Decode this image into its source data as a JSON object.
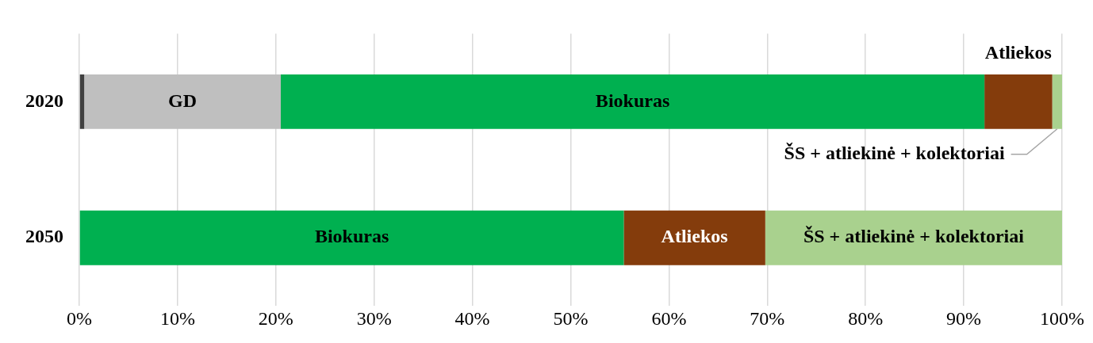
{
  "chart_data": {
    "type": "bar",
    "orientation": "horizontal",
    "stacked": true,
    "categories": [
      "2020",
      "2050"
    ],
    "series": [
      {
        "color": "#404040",
        "values": [
          0.5,
          0
        ]
      },
      {
        "name": "GD",
        "color": "#bfbfbf",
        "values": [
          20.0,
          0
        ]
      },
      {
        "name": "Biokuras",
        "color": "#00b050",
        "values": [
          71.6,
          55.4
        ]
      },
      {
        "name": "Atliekos",
        "color": "#843c0c",
        "values": [
          6.9,
          14.4
        ]
      },
      {
        "name": "ŠS + atliekinė + kolektoriai",
        "color": "#a9d18e",
        "values": [
          1.0,
          30.2
        ]
      }
    ],
    "xlim": [
      0,
      100
    ],
    "xticks": [
      {
        "value": 0,
        "label": "0%"
      },
      {
        "value": 10,
        "label": "10%"
      },
      {
        "value": 20,
        "label": "20%"
      },
      {
        "value": 30,
        "label": "30%"
      },
      {
        "value": 40,
        "label": "40%"
      },
      {
        "value": 50,
        "label": "50%"
      },
      {
        "value": 60,
        "label": "60%"
      },
      {
        "value": 70,
        "label": "70%"
      },
      {
        "value": 80,
        "label": "80%"
      },
      {
        "value": 90,
        "label": "90%"
      },
      {
        "value": 100,
        "label": "100%"
      }
    ],
    "grid": "x",
    "legend": false
  }
}
